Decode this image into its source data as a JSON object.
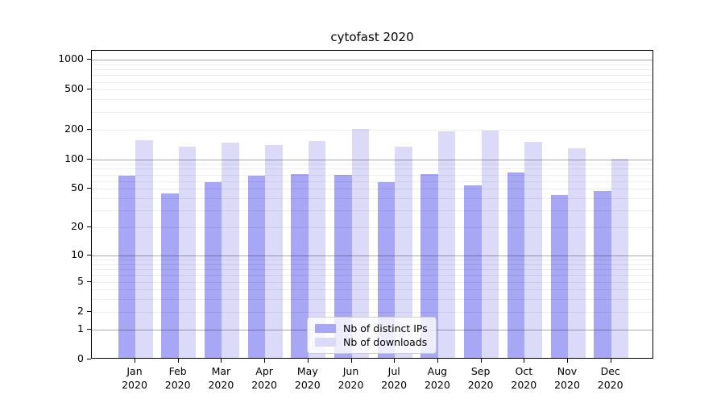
{
  "chart_data": {
    "type": "bar",
    "title": "cytofast 2020",
    "x_tick_months": [
      "Jan",
      "Feb",
      "Mar",
      "Apr",
      "May",
      "Jun",
      "Jul",
      "Aug",
      "Sep",
      "Oct",
      "Nov",
      "Dec"
    ],
    "x_tick_year": "2020",
    "series": [
      {
        "name": "Nb of distinct IPs",
        "color": "#a7a7f6",
        "values": [
          66,
          43,
          56,
          65,
          68,
          67,
          56,
          68,
          52,
          71,
          42,
          46
        ]
      },
      {
        "name": "Nb of downloads",
        "color": "#dbdbf9",
        "values": [
          150,
          129,
          142,
          134,
          148,
          195,
          128,
          184,
          187,
          144,
          125,
          97
        ]
      }
    ],
    "y_axis": {
      "scale": "log1p",
      "tick_values": [
        0,
        1,
        2,
        5,
        10,
        20,
        50,
        100,
        200,
        500,
        1000
      ],
      "tick_labels": [
        "0",
        "1",
        "2",
        "5",
        "10",
        "20",
        "50",
        "100",
        "200",
        "500",
        "1000"
      ],
      "minor_gridline_values": [
        3,
        4,
        6,
        7,
        8,
        9,
        30,
        40,
        60,
        70,
        80,
        90,
        300,
        400,
        600,
        700,
        800,
        900
      ],
      "major_gridline_values": [
        1,
        10,
        100,
        1000
      ]
    },
    "legend": {
      "position": "lower-center"
    },
    "colors": {
      "grid_minor": "rgba(0,0,0,0.07)",
      "grid_major": "rgba(0,0,0,0.33)",
      "frame": "#000000",
      "background": "#ffffff"
    }
  }
}
